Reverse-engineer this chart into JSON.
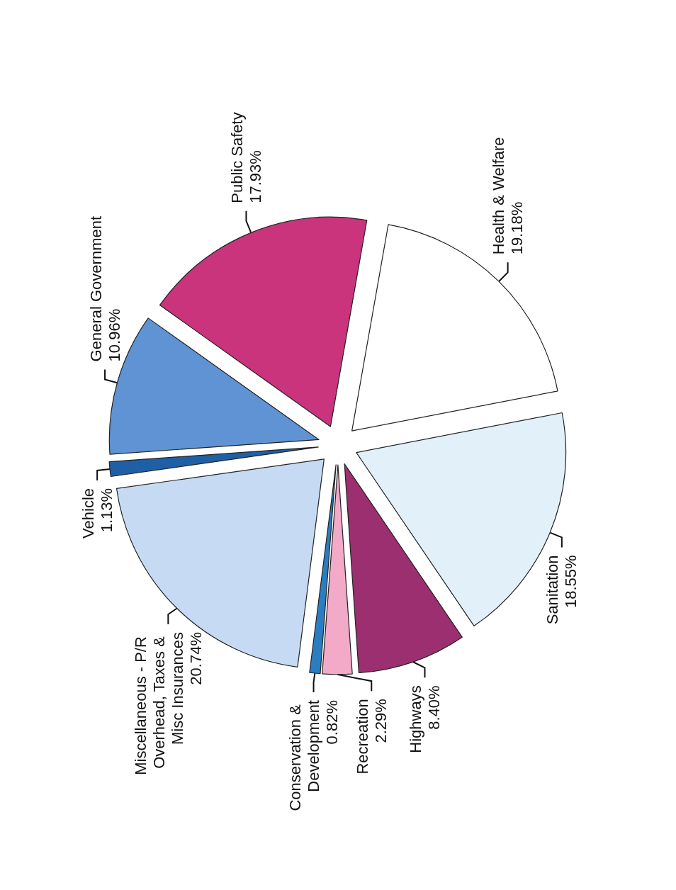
{
  "chart_data": {
    "type": "pie",
    "categories": [
      "Health & Welfare",
      "Sanitation",
      "Highways",
      "Recreation",
      "Conservation & Development",
      "Miscellaneous - P/R Overhead, Taxes & Misc Insurances",
      "Vehicle",
      "General Government",
      "Public Safety"
    ],
    "values": [
      19.18,
      18.55,
      8.4,
      2.29,
      0.82,
      20.74,
      1.13,
      10.96,
      17.93
    ],
    "value_labels": [
      "19.18%",
      "18.55%",
      "8.40%",
      "2.29%",
      "0.82%",
      "20.74%",
      "1.13%",
      "10.96%",
      "17.93%"
    ],
    "colors": [
      "#ffffff",
      "#e2f0fa",
      "#9b2f6f",
      "#f3a9c8",
      "#2b7dc2",
      "#c6dbf3",
      "#1f5fa6",
      "#5f93d3",
      "#c9347d"
    ],
    "legend": false
  }
}
